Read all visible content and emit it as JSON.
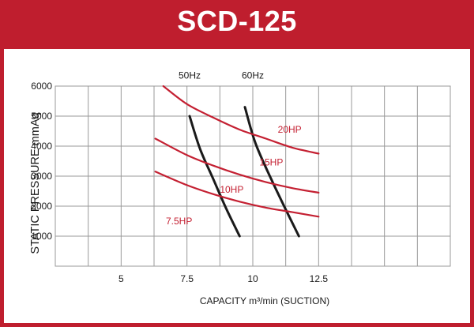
{
  "header": {
    "title": "SCD-125"
  },
  "colors": {
    "frame": "#bf1e2e",
    "power_curve": "#c42032",
    "system_curve": "#1a1a1a",
    "grid": "#9a9a9a",
    "axis_text": "#1a1a1a"
  },
  "chart_data": {
    "type": "line",
    "title": "SCD-125",
    "xlabel": "CAPACITY m³/min (SUCTION)",
    "ylabel": "STATIC PRESSURE mmAq",
    "xlim": [
      2.5,
      17.5
    ],
    "ylim": [
      0,
      6000
    ],
    "x_ticks": [
      "5",
      "7.5",
      "10",
      "12.5"
    ],
    "x_tick_values": [
      5,
      7.5,
      10,
      12.5
    ],
    "y_ticks": [
      "1000",
      "2000",
      "3000",
      "4000",
      "5000",
      "6000"
    ],
    "y_tick_values": [
      1000,
      2000,
      3000,
      4000,
      5000,
      6000
    ],
    "grid": true,
    "series": [
      {
        "name": "50Hz",
        "color": "#1a1a1a",
        "x": [
          7.6,
          8.0,
          8.5,
          9.0,
          9.5
        ],
        "y": [
          5000,
          3900,
          2900,
          1900,
          1000
        ]
      },
      {
        "name": "60Hz",
        "color": "#1a1a1a",
        "x": [
          9.7,
          10.1,
          10.7,
          11.3,
          11.75
        ],
        "y": [
          5300,
          4100,
          2900,
          1800,
          1000
        ]
      },
      {
        "name": "20HP",
        "color": "#c42032",
        "x": [
          6.6,
          7.5,
          8.5,
          9.5,
          10.5,
          11.5,
          12.5
        ],
        "y": [
          6000,
          5400,
          4950,
          4550,
          4250,
          3950,
          3750
        ]
      },
      {
        "name": "15HP",
        "color": "#c42032",
        "x": [
          6.3,
          7.5,
          8.5,
          9.5,
          10.5,
          11.5,
          12.5
        ],
        "y": [
          4250,
          3700,
          3350,
          3050,
          2800,
          2600,
          2450
        ]
      },
      {
        "name": "10HP",
        "color": "#c42032",
        "x": [
          6.3,
          7.5,
          8.5,
          9.5,
          10.5,
          11.5,
          12.5
        ],
        "y": [
          3150,
          2700,
          2400,
          2150,
          1950,
          1800,
          1650
        ]
      }
    ],
    "annotations": [
      {
        "text": "50Hz",
        "x": 7.6,
        "y": 6250
      },
      {
        "text": "60Hz",
        "x": 10.0,
        "y": 6250
      },
      {
        "text": "20HP",
        "x": 11.4,
        "y": 4450
      },
      {
        "text": "15HP",
        "x": 10.7,
        "y": 3350
      },
      {
        "text": "10HP",
        "x": 9.2,
        "y": 2450
      },
      {
        "text": "7.5HP",
        "x": 7.2,
        "y": 1400
      }
    ]
  }
}
